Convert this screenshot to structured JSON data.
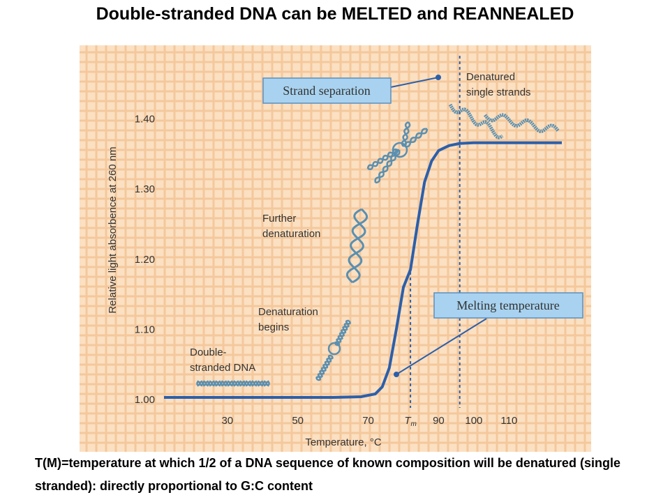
{
  "page": {
    "title": "Double-stranded DNA can be MELTED and REANNEALED",
    "caption": "T(M)=temperature at which 1/2 of a DNA sequence of known composition will be denatured (single stranded): directly proportional to G:C content"
  },
  "colors": {
    "panel_background": "#fbe0c2",
    "grid_lines": "#f4c89c",
    "curve": "#2c5faa",
    "callout_fill": "#a8d2ef",
    "callout_border": "#5b8fc0",
    "dna_strand": "#5a8fb0",
    "text": "#333333"
  },
  "chart_data": {
    "type": "line",
    "title": "",
    "xlabel": "Temperature, °C",
    "ylabel": "Relative light absorbence at 260 nm",
    "xlim": [
      12,
      125
    ],
    "ylim": [
      0.98,
      1.5
    ],
    "xticks": [
      {
        "value": 30,
        "label": "30"
      },
      {
        "value": 50,
        "label": "50"
      },
      {
        "value": 70,
        "label": "70"
      },
      {
        "value": 82,
        "label": "T",
        "sub": "m"
      },
      {
        "value": 90,
        "label": "90"
      },
      {
        "value": 100,
        "label": "100"
      },
      {
        "value": 110,
        "label": "110"
      }
    ],
    "yticks": [
      1.0,
      1.1,
      1.2,
      1.3,
      1.4
    ],
    "ytick_labels": [
      "1.00",
      "1.10",
      "1.20",
      "1.30",
      "1.40"
    ],
    "grid": true,
    "tm": 82,
    "denatured_line": 96,
    "series": [
      {
        "x": [
          12,
          60,
          68,
          72,
          74,
          76,
          78,
          80,
          82,
          84,
          86,
          88,
          90,
          93,
          96,
          100,
          110,
          125
        ],
        "y": [
          1.003,
          1.003,
          1.004,
          1.008,
          1.018,
          1.045,
          1.1,
          1.16,
          1.185,
          1.25,
          1.31,
          1.34,
          1.355,
          1.362,
          1.365,
          1.366,
          1.366,
          1.366
        ]
      }
    ],
    "annotations": {
      "double_stranded": [
        "Double-",
        "stranded DNA"
      ],
      "denaturation_begins": [
        "Denaturation",
        "begins"
      ],
      "further_denaturation": [
        "Further",
        "denaturation"
      ],
      "denatured_single": [
        "Denatured",
        "single strands"
      ],
      "strand_separation": "Strand separation",
      "melting_temperature": "Melting temperature"
    }
  }
}
